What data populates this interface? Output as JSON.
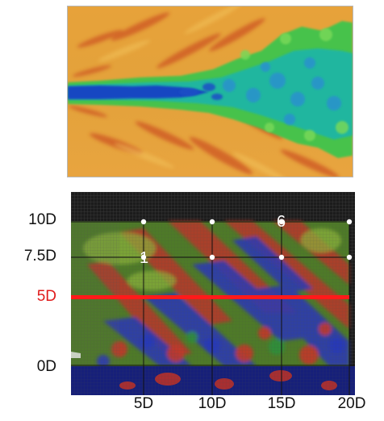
{
  "top_figure": {
    "description_colors": {
      "background_warm": "#e9a33c",
      "background_red": "#cf5a24",
      "jet_core": "#1549c4",
      "jet_mid": "#18b8a6",
      "jet_outer": "#4cc84c"
    }
  },
  "bottom_figure": {
    "y_labels": [
      {
        "text": "10D",
        "highlight": false
      },
      {
        "text": "7.5D",
        "highlight": false
      },
      {
        "text": "5D",
        "highlight": true
      },
      {
        "text": "0D",
        "highlight": false
      }
    ],
    "x_labels": [
      "5D",
      "10D",
      "15D",
      "20D"
    ],
    "probe_labels": [
      "1",
      "6"
    ],
    "colors": {
      "grid_bg": "#1c1c1c",
      "highlight_line": "#ff1a1a",
      "highlight_text": "#e01b1b",
      "probe_point": "#ffffff"
    }
  }
}
